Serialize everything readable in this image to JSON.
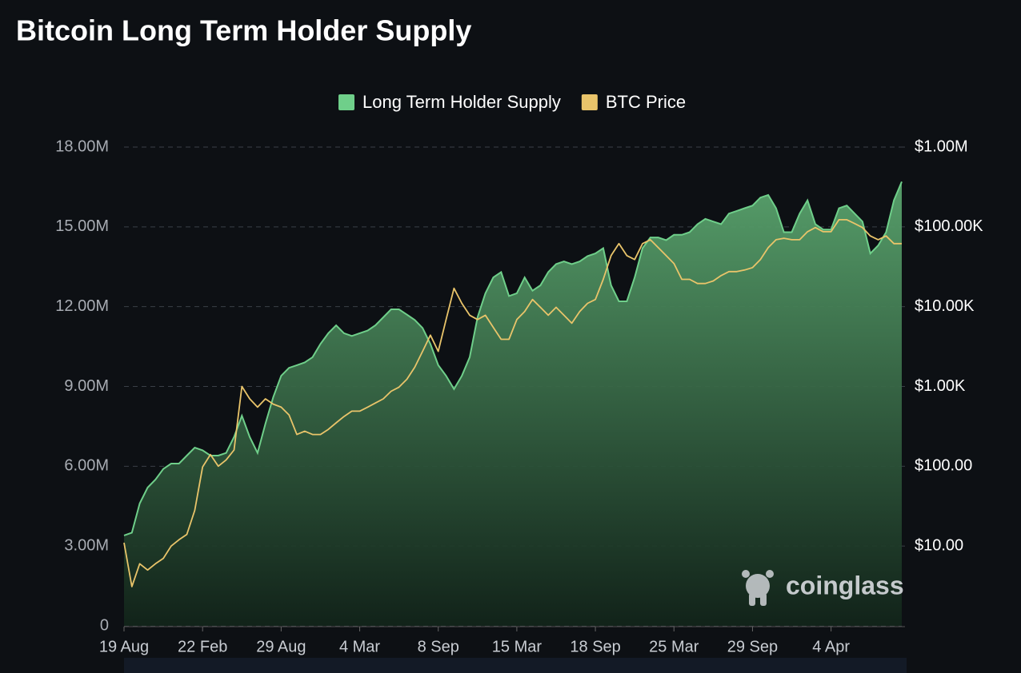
{
  "chart_data": {
    "type": "area-line",
    "title": "Bitcoin Long Term Holder Supply",
    "watermark": "coinglass",
    "categories": [
      "19 Aug",
      null,
      null,
      null,
      null,
      null,
      null,
      null,
      null,
      null,
      "22 Feb",
      null,
      null,
      null,
      null,
      null,
      null,
      null,
      null,
      null,
      "29 Aug",
      null,
      null,
      null,
      null,
      null,
      null,
      null,
      null,
      null,
      "4 Mar",
      null,
      null,
      null,
      null,
      null,
      null,
      null,
      null,
      null,
      "8 Sep",
      null,
      null,
      null,
      null,
      null,
      null,
      null,
      null,
      null,
      "15 Mar",
      null,
      null,
      null,
      null,
      null,
      null,
      null,
      null,
      null,
      "18 Sep",
      null,
      null,
      null,
      null,
      null,
      null,
      null,
      null,
      null,
      "25 Mar",
      null,
      null,
      null,
      null,
      null,
      null,
      null,
      null,
      null,
      "29 Sep",
      null,
      null,
      null,
      null,
      null,
      null,
      null,
      null,
      null,
      "4 Apr",
      null,
      null,
      null,
      null,
      null,
      null,
      null,
      null,
      null
    ],
    "series": [
      {
        "name": "Long Term Holder Supply",
        "color": "#6fcf8a",
        "axis": "y",
        "values": [
          3400000,
          3500000,
          4600000,
          5200000,
          5500000,
          5900000,
          6100000,
          6100000,
          6400000,
          6700000,
          6600000,
          6400000,
          6400000,
          6500000,
          7100000,
          7900000,
          7100000,
          6500000,
          7600000,
          8600000,
          9400000,
          9700000,
          9800000,
          9900000,
          10100000,
          10600000,
          11000000,
          11300000,
          11000000,
          10900000,
          11000000,
          11100000,
          11300000,
          11600000,
          11900000,
          11900000,
          11700000,
          11500000,
          11200000,
          10600000,
          9800000,
          9400000,
          8900000,
          9400000,
          10100000,
          11600000,
          12500000,
          13100000,
          13300000,
          12400000,
          12500000,
          13100000,
          12600000,
          12800000,
          13300000,
          13600000,
          13700000,
          13600000,
          13700000,
          13900000,
          14000000,
          14200000,
          12800000,
          12200000,
          12200000,
          13100000,
          14200000,
          14600000,
          14600000,
          14500000,
          14700000,
          14700000,
          14800000,
          15100000,
          15300000,
          15200000,
          15100000,
          15500000,
          15600000,
          15700000,
          15800000,
          16100000,
          16200000,
          15700000,
          14800000,
          14800000,
          15500000,
          16000000,
          15100000,
          14900000,
          14900000,
          15700000,
          15800000,
          15500000,
          15200000,
          14000000,
          14300000,
          14800000,
          16000000,
          16700000
        ]
      },
      {
        "name": "BTC Price",
        "color": "#e9c46a",
        "axis": "y2",
        "values": [
          11,
          3.1,
          6,
          5,
          6,
          7,
          10,
          12,
          14,
          28,
          98,
          140,
          100,
          120,
          160,
          1000,
          700,
          550,
          700,
          600,
          550,
          440,
          250,
          275,
          250,
          250,
          290,
          350,
          420,
          490,
          490,
          550,
          620,
          700,
          870,
          980,
          1230,
          1740,
          2750,
          4400,
          2750,
          6900,
          17000,
          11000,
          7800,
          6900,
          7800,
          5500,
          3900,
          3900,
          6900,
          8700,
          12300,
          9800,
          7800,
          9800,
          7800,
          6200,
          8700,
          11000,
          12300,
          22000,
          43600,
          61700,
          43600,
          39000,
          61700,
          69000,
          55000,
          43600,
          34700,
          22000,
          22000,
          19500,
          19500,
          21000,
          24500,
          27500,
          27500,
          28800,
          30900,
          39000,
          55000,
          69000,
          72000,
          69000,
          69000,
          87000,
          98000,
          87000,
          87000,
          123000,
          123000,
          110000,
          98000,
          77000,
          69000,
          77000,
          61700,
          61700
        ]
      }
    ],
    "ylim": [
      0,
      18000000
    ],
    "yticks": [
      0,
      {
        "value": 3000000,
        "label": "3.00M"
      },
      {
        "value": 6000000,
        "label": "6.00M"
      },
      {
        "value": 9000000,
        "label": "9.00M"
      },
      {
        "value": 12000000,
        "label": "12.00M"
      },
      {
        "value": 15000000,
        "label": "15.00M"
      },
      {
        "value": 18000000,
        "label": "18.00M"
      }
    ],
    "y2lim": [
      1,
      1000000
    ],
    "y2log": true,
    "y2ticks": [
      {
        "value": 10,
        "label": "$10.00"
      },
      {
        "value": 100,
        "label": "$100.00"
      },
      {
        "value": 1000,
        "label": "$1.00K"
      },
      {
        "value": 10000,
        "label": "$10.00K"
      },
      {
        "value": 100000,
        "label": "$100.00K"
      },
      {
        "value": 1000000,
        "label": "$1.00M"
      }
    ],
    "grid": true,
    "legend": "top"
  }
}
